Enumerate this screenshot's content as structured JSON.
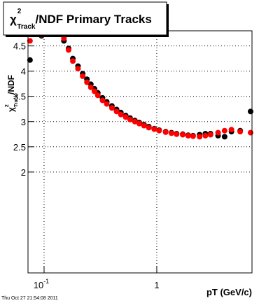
{
  "chart_data": {
    "type": "scatter",
    "title": {
      "symbol": "χ",
      "sup": "2",
      "sub": "Track",
      "text": "/NDF  Primary Tracks"
    },
    "y_label": {
      "symbol": "χ",
      "sup": "2",
      "sub": "Track",
      "text": "/NDF"
    },
    "x_label": "pT (GeV/c)",
    "footer": "Thu Oct 27 21:54:08 2011",
    "log_x": true,
    "grid": true,
    "xlim": [
      0.072,
      7
    ],
    "ylim": [
      0,
      4.8
    ],
    "xticks": [
      {
        "value": 0.1,
        "label": "10",
        "exponent": "-1"
      },
      1
    ],
    "yticks": [
      2,
      2.5,
      3,
      3.5,
      4,
      4.5
    ],
    "x": [
      0.075,
      0.095,
      0.15,
      0.165,
      0.18,
      0.2,
      0.22,
      0.24,
      0.26,
      0.28,
      0.3,
      0.33,
      0.36,
      0.4,
      0.44,
      0.48,
      0.53,
      0.58,
      0.64,
      0.7,
      0.77,
      0.85,
      0.95,
      1.05,
      1.2,
      1.35,
      1.5,
      1.7,
      1.9,
      2.1,
      2.4,
      2.7,
      3.0,
      3.5,
      4.0,
      4.6,
      5.5,
      6.8
    ],
    "series": [
      {
        "color": "#000000",
        "values": [
          4.22,
          4.7,
          4.6,
          4.45,
          4.25,
          4.1,
          3.95,
          3.84,
          3.74,
          3.65,
          3.57,
          3.47,
          3.39,
          3.31,
          3.24,
          3.18,
          3.12,
          3.07,
          3.02,
          2.98,
          2.94,
          2.9,
          2.86,
          2.83,
          2.8,
          2.78,
          2.76,
          2.75,
          2.73,
          2.72,
          2.74,
          2.76,
          2.76,
          2.72,
          2.7,
          2.8,
          2.82,
          3.2
        ]
      },
      {
        "color": "#ff0000",
        "values": [
          4.6,
          4.72,
          4.65,
          4.42,
          4.2,
          4.05,
          3.9,
          3.78,
          3.68,
          3.6,
          3.52,
          3.42,
          3.35,
          3.27,
          3.2,
          3.14,
          3.09,
          3.04,
          3.0,
          2.96,
          2.92,
          2.88,
          2.85,
          2.82,
          2.79,
          2.77,
          2.75,
          2.74,
          2.72,
          2.71,
          2.7,
          2.72,
          2.74,
          2.78,
          2.82,
          2.84,
          2.8,
          2.78
        ]
      }
    ]
  }
}
